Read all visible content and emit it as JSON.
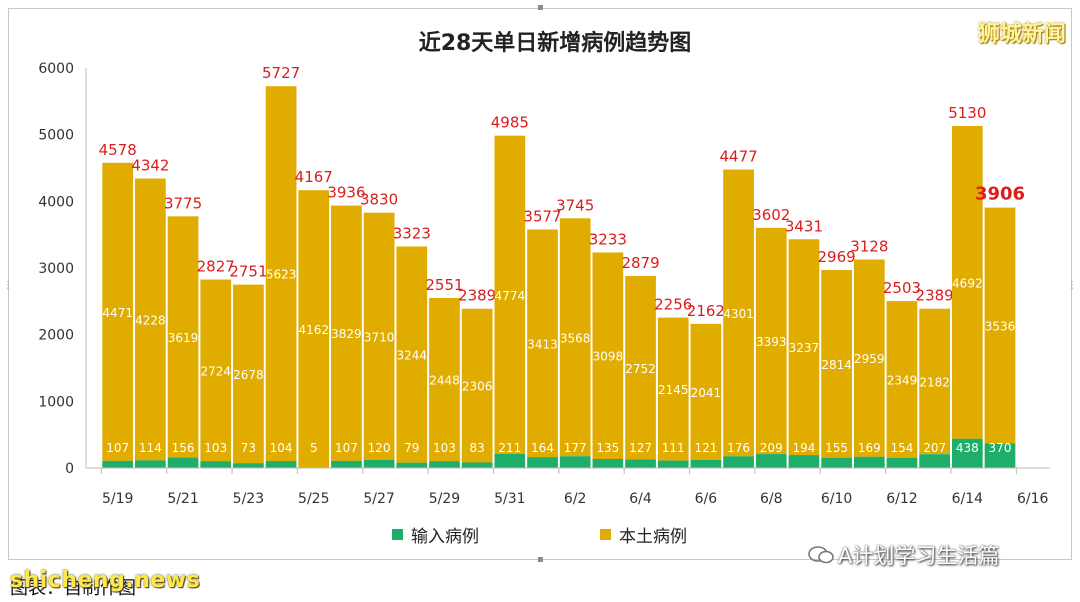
{
  "brand": "狮城新闻",
  "watermark": {
    "wechat": "A计划学习生活篇",
    "site": "shicheng.news",
    "source": "图表：自制作图"
  },
  "colors": {
    "local": "#e0ac00",
    "imported": "#1fae6a",
    "total_label": "#dd1c1c",
    "value_label": "#ffffff"
  },
  "chart_data": {
    "type": "bar",
    "stacked": true,
    "title": "近28天单日新增病例趋势图",
    "xlabel": "",
    "ylabel": "",
    "ylim": [
      0,
      6000
    ],
    "yticks": [
      "0",
      "1000",
      "2000",
      "3000",
      "4000",
      "5000",
      "6000"
    ],
    "categories": [
      "5/19",
      "5/20",
      "5/21",
      "5/22",
      "5/23",
      "5/24",
      "5/25",
      "5/26",
      "5/27",
      "5/28",
      "5/29",
      "5/30",
      "5/31",
      "6/1",
      "6/2",
      "6/3",
      "6/4",
      "6/5",
      "6/6",
      "6/7",
      "6/8",
      "6/9",
      "6/10",
      "6/11",
      "6/12",
      "6/13",
      "6/14",
      "6/15"
    ],
    "x_tick_labels": [
      "5/19",
      "5/21",
      "5/23",
      "5/25",
      "5/27",
      "5/29",
      "5/31",
      "6/2",
      "6/4",
      "6/6",
      "6/8",
      "6/10",
      "6/12",
      "6/14",
      "6/16"
    ],
    "series": [
      {
        "name": "输入病例",
        "values": [
          107,
          114,
          156,
          103,
          73,
          104,
          5,
          107,
          120,
          79,
          103,
          83,
          211,
          164,
          177,
          135,
          127,
          111,
          121,
          176,
          209,
          194,
          155,
          169,
          154,
          207,
          438,
          370
        ]
      },
      {
        "name": "本土病例",
        "values": [
          4471,
          4228,
          3619,
          2724,
          2678,
          5623,
          4162,
          3829,
          3710,
          3244,
          2448,
          2306,
          4774,
          3413,
          3568,
          3098,
          2752,
          2145,
          2041,
          4301,
          3393,
          3237,
          2814,
          2959,
          2349,
          2182,
          4692,
          3536
        ]
      }
    ],
    "totals": [
      4578,
      4342,
      3775,
      2827,
      2751,
      5727,
      4167,
      3936,
      3830,
      3323,
      2551,
      2389,
      4985,
      3577,
      3745,
      3233,
      2879,
      2256,
      2162,
      4477,
      3602,
      3431,
      2969,
      3128,
      2503,
      2389,
      5130,
      3906
    ],
    "legend_position": "bottom-center",
    "grid": false
  }
}
